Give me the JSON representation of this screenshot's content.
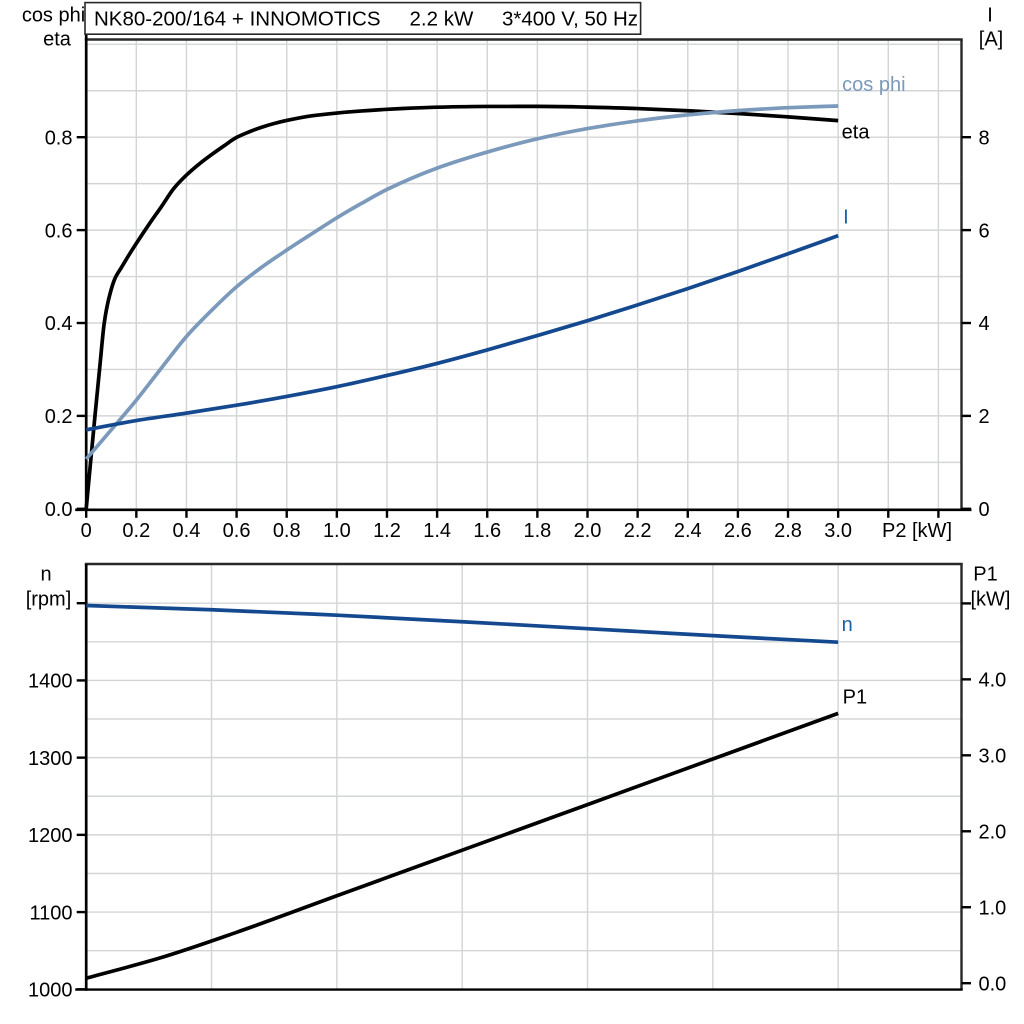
{
  "page": {
    "background": "#ffffff"
  },
  "title_box": {
    "model": "NK80-200/164 + INNOMOTICS",
    "power": "2.2 kW",
    "voltage": "3*400 V, 50 Hz"
  },
  "colors": {
    "black": "#000000",
    "frame": "#282828",
    "grid": "#d3d5d7",
    "cos_phi": "#7b99ba",
    "current_curve": "#15498f",
    "current_label": "#1a60ab",
    "background": "#ffffff"
  },
  "chart_data": [
    {
      "type": "line",
      "title": "NK80-200/164 + INNOMOTICS 2.2 kW 3*400 V, 50 Hz",
      "xlabel": "P2 [kW]",
      "x_range": [
        0,
        3.49
      ],
      "grid": true,
      "legend_position": "right-of-curve-ends",
      "x_ticks": {
        "values": [
          0,
          0.2,
          0.4,
          0.6,
          0.8,
          1.0,
          1.2,
          1.4,
          1.6,
          1.8,
          2.0,
          2.2,
          2.4,
          2.6,
          2.8,
          3.0,
          3.2,
          3.4
        ],
        "labels": [
          "0",
          "0.2",
          "0.4",
          "0.6",
          "0.8",
          "1.0",
          "1.2",
          "1.4",
          "1.6",
          "1.8",
          "2.0",
          "2.2",
          "2.4",
          "2.6",
          "2.8",
          "3.0",
          "",
          ""
        ]
      },
      "x_grid_step": 0.2,
      "left_axis": {
        "title_line1": "cos phi",
        "title_line2": "eta",
        "range": [
          0,
          1.01
        ],
        "ticks": {
          "values": [
            0,
            0.2,
            0.4,
            0.6,
            0.8
          ],
          "labels": [
            "0.0",
            "0.2",
            "0.4",
            "0.6",
            "0.8"
          ]
        },
        "grid_step": 0.1,
        "grid_max": 1.0
      },
      "right_axis": {
        "title_line1": "I",
        "title_line2": "[A]",
        "range": [
          0,
          10.1
        ],
        "ticks": {
          "values": [
            0,
            2,
            4,
            6,
            8
          ],
          "labels": [
            "0",
            "2",
            "4",
            "6",
            "8"
          ]
        }
      },
      "series": [
        {
          "name": "eta",
          "label": "eta",
          "axis": "left",
          "color": "#000000",
          "label_color": "#000000",
          "x": [
            0,
            0.02,
            0.035,
            0.055,
            0.072,
            0.09,
            0.115,
            0.14,
            0.17,
            0.2,
            0.25,
            0.3,
            0.35,
            0.4,
            0.45,
            0.5,
            0.55,
            0.6,
            0.65,
            0.7,
            0.75,
            0.8,
            0.9,
            1.0,
            1.1,
            1.2,
            1.3,
            1.4,
            1.6,
            1.8,
            2.0,
            2.2,
            2.4,
            2.6,
            2.8,
            3.0
          ],
          "values": [
            0,
            0.115,
            0.2,
            0.31,
            0.4,
            0.452,
            0.496,
            0.519,
            0.546,
            0.5715,
            0.612,
            0.6505,
            0.69,
            0.7185,
            0.742,
            0.7625,
            0.7815,
            0.7995,
            0.8115,
            0.8215,
            0.8295,
            0.836,
            0.846,
            0.852,
            0.8565,
            0.86,
            0.8627,
            0.8646,
            0.8662,
            0.8663,
            0.8648,
            0.8617,
            0.857,
            0.851,
            0.8437,
            0.8357
          ]
        },
        {
          "name": "cos_phi",
          "label": "cos phi",
          "axis": "left",
          "color": "#7b99ba",
          "label_color": "#7b99ba",
          "x": [
            0,
            0.1,
            0.2,
            0.3,
            0.4,
            0.5,
            0.6,
            0.7,
            0.8,
            0.9,
            1.0,
            1.1,
            1.2,
            1.4,
            1.6,
            1.8,
            2.0,
            2.2,
            2.4,
            2.6,
            2.8,
            3.0
          ],
          "values": [
            0.107,
            0.17,
            0.234,
            0.303,
            0.371,
            0.427,
            0.478,
            0.52,
            0.557,
            0.592,
            0.6265,
            0.658,
            0.6875,
            0.7335,
            0.768,
            0.7965,
            0.8185,
            0.8352,
            0.848,
            0.8572,
            0.8635,
            0.8672
          ]
        },
        {
          "name": "I",
          "label": "I",
          "axis": "right",
          "color": "#15498f",
          "label_color": "#1a60ab",
          "x": [
            0,
            0.2,
            0.4,
            0.6,
            0.8,
            1.0,
            1.2,
            1.4,
            1.6,
            1.8,
            2.0,
            2.2,
            2.4,
            2.6,
            2.8,
            3.0
          ],
          "values": [
            1.7,
            1.9,
            2.06,
            2.23,
            2.42,
            2.63,
            2.87,
            3.13,
            3.42,
            3.73,
            4.05,
            4.39,
            4.74,
            5.11,
            5.49,
            5.88
          ]
        }
      ]
    },
    {
      "type": "line",
      "xlabel": "",
      "x_range": [
        0,
        3.49
      ],
      "grid": true,
      "x_ticks": {
        "values": [],
        "labels": []
      },
      "x_grid_step": 0.5,
      "left_axis": {
        "title_line1": "n",
        "title_line2": "[rpm]",
        "range": [
          1000,
          1551
        ],
        "ticks": {
          "values": [
            1000,
            1100,
            1200,
            1300,
            1400,
            1500
          ],
          "labels": [
            "1000",
            "1100",
            "1200",
            "1300",
            "1400",
            ""
          ]
        },
        "grid_step": 50,
        "grid_max": 1500
      },
      "right_axis": {
        "title_line1": "P1",
        "title_line2": "[kW]",
        "range": [
          0,
          5.5
        ],
        "ticks": {
          "values": [
            0,
            1,
            2,
            3,
            4,
            5
          ],
          "labels": [
            "0.0",
            "1.0",
            "2.0",
            "3.0",
            "4.0",
            ""
          ]
        }
      },
      "series": [
        {
          "name": "n",
          "label": "n",
          "axis": "left",
          "color": "#15498f",
          "label_color": "#1a60ab",
          "x": [
            0,
            0.5,
            1.0,
            1.5,
            2.0,
            2.5,
            3.0
          ],
          "values": [
            1497,
            1491.5,
            1484.5,
            1476,
            1467,
            1458,
            1449.5
          ]
        },
        {
          "name": "P1",
          "label": "P1",
          "axis": "right",
          "color": "#000000",
          "label_color": "#000000",
          "x": [
            0,
            0.3,
            0.6,
            1.0,
            1.5,
            2.0,
            2.5,
            3.0
          ],
          "values": [
            0.065,
            0.338,
            0.67,
            1.151,
            1.751,
            2.351,
            2.952,
            3.552
          ]
        }
      ]
    }
  ]
}
